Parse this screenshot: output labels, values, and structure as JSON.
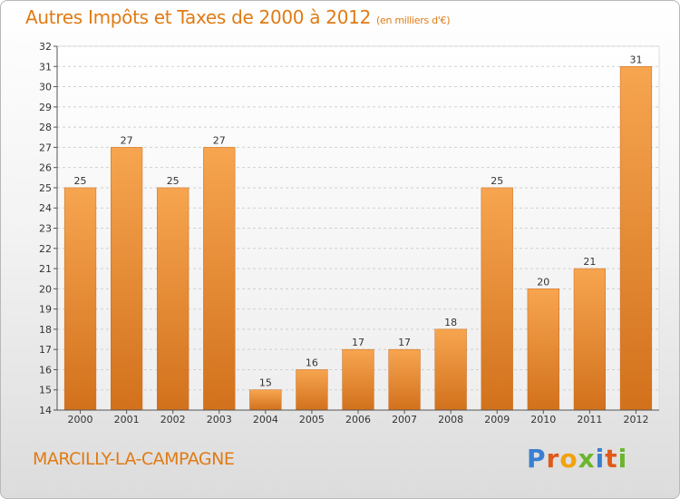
{
  "header": {
    "title": "Autres Impôts et Taxes de 2000 à 2012",
    "subtitle": "(en milliers d'€)"
  },
  "footer": {
    "commune": "MARCILLY-LA-CAMPAGNE",
    "brand_letters": [
      "P",
      "r",
      "o",
      "x",
      "i",
      "t",
      "i"
    ]
  },
  "colors": {
    "bar_top": "#f7a550",
    "bar_bottom": "#d2711c",
    "title": "#e07b14"
  },
  "chart_data": {
    "type": "bar",
    "title": "Autres Impôts et Taxes de 2000 à 2012",
    "subtitle": "(en milliers d'€)",
    "xlabel": "",
    "ylabel": "",
    "categories": [
      "2000",
      "2001",
      "2002",
      "2003",
      "2004",
      "2005",
      "2006",
      "2007",
      "2008",
      "2009",
      "2010",
      "2011",
      "2012"
    ],
    "values": [
      25,
      27,
      25,
      27,
      15,
      16,
      17,
      17,
      18,
      25,
      20,
      21,
      31
    ],
    "data_labels": [
      "25",
      "27",
      "25",
      "27",
      "15",
      "16",
      "17",
      "17",
      "18",
      "25",
      "20",
      "21",
      "31"
    ],
    "ylim": [
      14,
      32
    ],
    "yticks": [
      14,
      15,
      16,
      17,
      18,
      19,
      20,
      21,
      22,
      23,
      24,
      25,
      26,
      27,
      28,
      29,
      30,
      31,
      32
    ],
    "grid": true
  }
}
